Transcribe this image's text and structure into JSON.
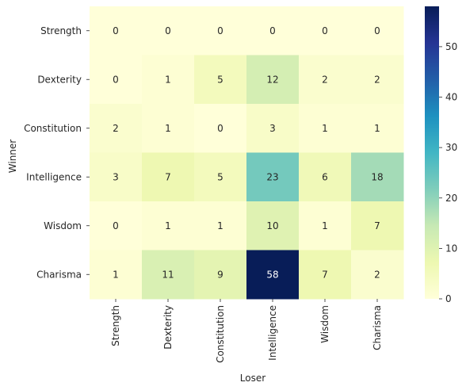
{
  "chart_data": {
    "type": "heatmap",
    "title": "",
    "xlabel": "Loser",
    "ylabel": "Winner",
    "x_categories": [
      "Strength",
      "Dexterity",
      "Constitution",
      "Intelligence",
      "Wisdom",
      "Charisma"
    ],
    "y_categories": [
      "Strength",
      "Dexterity",
      "Constitution",
      "Intelligence",
      "Wisdom",
      "Charisma"
    ],
    "values": [
      [
        0,
        0,
        0,
        0,
        0,
        0
      ],
      [
        0,
        1,
        5,
        12,
        2,
        2
      ],
      [
        2,
        1,
        0,
        3,
        1,
        1
      ],
      [
        3,
        7,
        5,
        23,
        6,
        18
      ],
      [
        0,
        1,
        1,
        10,
        1,
        7
      ],
      [
        1,
        11,
        9,
        58,
        7,
        2
      ]
    ],
    "colormap": "YlGnBu",
    "colorbar": {
      "min": 0,
      "max": 58,
      "ticks": [
        0,
        10,
        20,
        30,
        40,
        50
      ]
    },
    "annotations": true
  }
}
